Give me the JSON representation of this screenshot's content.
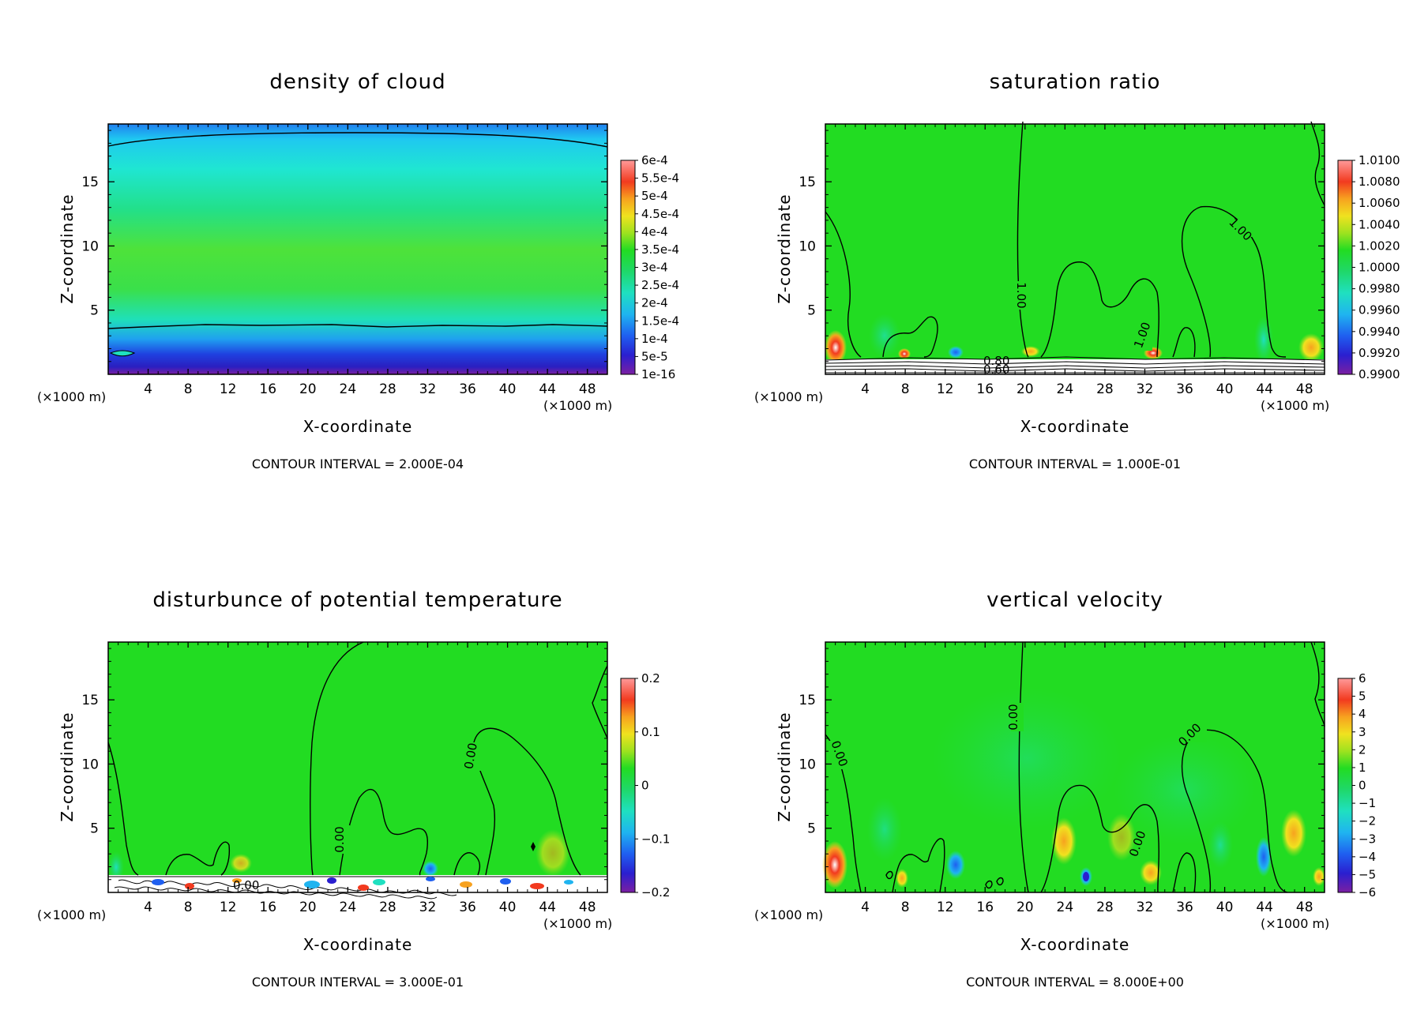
{
  "figure": {
    "panels": [
      {
        "title": "density of cloud",
        "xlabel": "X-coordinate",
        "ylabel": "Z-coordinate",
        "x_unit_left": "(×1000 m)",
        "x_unit_right": "(×1000 m)",
        "contour_interval": "CONTOUR INTERVAL = 2.000E-04",
        "colorbar_labels": [
          "6e-4",
          "5.5e-4",
          "5e-4",
          "4.5e-4",
          "4e-4",
          "3.5e-4",
          "3e-4",
          "2.5e-4",
          "2e-4",
          "1.5e-4",
          "1e-4",
          "5e-5",
          "1e-16"
        ],
        "contour_labels": []
      },
      {
        "title": "saturation ratio",
        "xlabel": "X-coordinate",
        "ylabel": "Z-coordinate",
        "x_unit_left": "(×1000 m)",
        "x_unit_right": "(×1000 m)",
        "contour_interval": "CONTOUR INTERVAL = 1.000E-01",
        "colorbar_labels": [
          "1.0100",
          "1.0080",
          "1.0060",
          "1.0040",
          "1.0020",
          "1.0000",
          "0.9980",
          "0.9960",
          "0.9940",
          "0.9920",
          "0.9900"
        ],
        "contour_labels": [
          "1.00",
          "1.00",
          "1.00",
          "0.80",
          "0.60"
        ]
      },
      {
        "title": "disturbunce of potential temperature",
        "xlabel": "X-coordinate",
        "ylabel": "Z-coordinate",
        "x_unit_left": "(×1000 m)",
        "x_unit_right": "(×1000 m)",
        "contour_interval": "CONTOUR INTERVAL = 3.000E-01",
        "colorbar_labels": [
          "0.2",
          "0.1",
          "0",
          "−0.1",
          "−0.2"
        ],
        "contour_labels": [
          "0.00",
          "0.00",
          "0.00"
        ]
      },
      {
        "title": "vertical velocity",
        "xlabel": "X-coordinate",
        "ylabel": "Z-coordinate",
        "x_unit_left": "(×1000 m)",
        "x_unit_right": "(×1000 m)",
        "contour_interval": "CONTOUR INTERVAL = 8.000E+00",
        "colorbar_labels": [
          "6",
          "5",
          "4",
          "3",
          "2",
          "1",
          "0",
          "−1",
          "−2",
          "−3",
          "−4",
          "−5",
          "−6"
        ],
        "contour_labels": [
          "0.00",
          "0.00",
          "0.00",
          "0.00"
        ]
      }
    ]
  },
  "chart_data": [
    {
      "type": "heatmap",
      "title": "density of cloud",
      "xlabel": "X-coordinate",
      "ylabel": "Z-coordinate",
      "x_unit": "×1000 m",
      "xticks": [
        4,
        8,
        12,
        16,
        20,
        24,
        28,
        32,
        36,
        40,
        44,
        48
      ],
      "yticks": [
        5,
        10,
        15
      ],
      "xlim": [
        0,
        50
      ],
      "ylim": [
        0,
        19.5
      ],
      "colorbar_levels": [
        1e-16,
        5e-05,
        0.0001,
        0.00015,
        0.0002,
        0.00025,
        0.0003,
        0.00035,
        0.0004,
        0.00045,
        0.0005,
        0.00055,
        0.0006
      ],
      "contour_interval": 0.0002,
      "colors": {
        "low": "#7b1fa2",
        "mid": "#1fdc1f",
        "high": "#ff5555"
      }
    },
    {
      "type": "heatmap",
      "title": "saturation ratio",
      "xlabel": "X-coordinate",
      "ylabel": "Z-coordinate",
      "x_unit": "×1000 m",
      "xticks": [
        4,
        8,
        12,
        16,
        20,
        24,
        28,
        32,
        36,
        40,
        44,
        48
      ],
      "yticks": [
        5,
        10,
        15
      ],
      "xlim": [
        0,
        50
      ],
      "ylim": [
        0,
        19.5
      ],
      "colorbar_levels": [
        0.99,
        0.992,
        0.994,
        0.996,
        0.998,
        1.0,
        1.002,
        1.004,
        1.006,
        1.008,
        1.01
      ],
      "contour_interval": 0.1
    },
    {
      "type": "heatmap",
      "title": "disturbunce of potential temperature",
      "xlabel": "X-coordinate",
      "ylabel": "Z-coordinate",
      "x_unit": "×1000 m",
      "xticks": [
        4,
        8,
        12,
        16,
        20,
        24,
        28,
        32,
        36,
        40,
        44,
        48
      ],
      "yticks": [
        5,
        10,
        15
      ],
      "xlim": [
        0,
        50
      ],
      "ylim": [
        0,
        19.5
      ],
      "colorbar_levels": [
        -0.2,
        -0.1,
        0,
        0.1,
        0.2
      ],
      "contour_interval": 0.3
    },
    {
      "type": "heatmap",
      "title": "vertical velocity",
      "xlabel": "X-coordinate",
      "ylabel": "Z-coordinate",
      "x_unit": "×1000 m",
      "xticks": [
        4,
        8,
        12,
        16,
        20,
        24,
        28,
        32,
        36,
        40,
        44,
        48
      ],
      "yticks": [
        5,
        10,
        15
      ],
      "xlim": [
        0,
        50
      ],
      "ylim": [
        0,
        19.5
      ],
      "colorbar_levels": [
        -6,
        -5,
        -4,
        -3,
        -2,
        -1,
        0,
        1,
        2,
        3,
        4,
        5,
        6
      ],
      "contour_interval": 8.0
    }
  ]
}
